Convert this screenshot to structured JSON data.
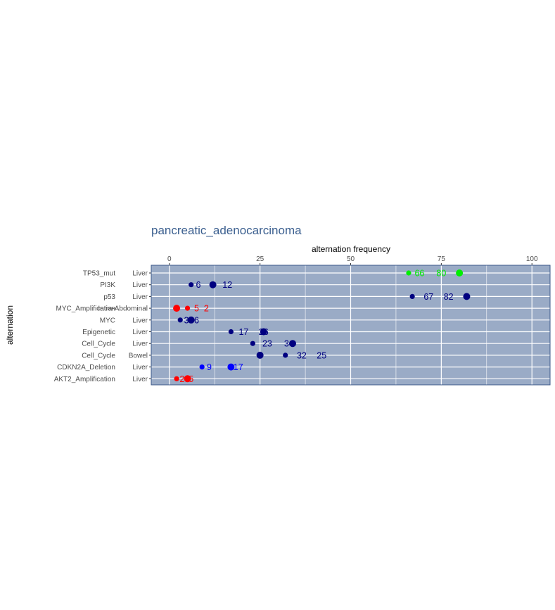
{
  "chart_data": {
    "type": "scatter",
    "title": "pancreatic_adenocarcinoma",
    "xlabel": "alternation frequency",
    "ylabel": "alternation",
    "xlim": [
      -5,
      105
    ],
    "x_axis_position": "top",
    "x_ticks": [
      "0",
      "25",
      "50",
      "75",
      "100"
    ],
    "x_tick_values": [
      0,
      25,
      50,
      75,
      100
    ],
    "grid": true,
    "legend": "none",
    "colors": {
      "panel_background": "#9aabc6",
      "panel_border": "#3c5a8a",
      "grid": "#ffffff",
      "title": "#3b5f8f",
      "green": "#00ee00",
      "navy": "#000080",
      "red": "#ff0000",
      "blue": "#0000ff"
    },
    "rows": [
      {
        "alternation": "TP53_mut",
        "site": "Liver",
        "color": "green",
        "points": [
          {
            "x": 66,
            "size": "small"
          },
          {
            "x": 80,
            "size": "large"
          }
        ],
        "labels": [
          {
            "text": "66",
            "x": 69
          },
          {
            "text": "80",
            "x": 75
          }
        ]
      },
      {
        "alternation": "PI3K",
        "site": "Liver",
        "color": "navy",
        "points": [
          {
            "x": 6,
            "size": "small"
          },
          {
            "x": 12,
            "size": "large"
          }
        ],
        "labels": [
          {
            "text": "6",
            "x": 8
          },
          {
            "text": "12",
            "x": 16
          }
        ]
      },
      {
        "alternation": "p53",
        "site": "Liver",
        "color": "navy",
        "points": [
          {
            "x": 67,
            "size": "small"
          },
          {
            "x": 82,
            "size": "large"
          }
        ],
        "labels": [
          {
            "text": "67",
            "x": 71.5
          },
          {
            "text": "82",
            "x": 77
          }
        ]
      },
      {
        "alternation": "MYC_Amplification",
        "site": "Intra-Abdominal",
        "color": "red",
        "points": [
          {
            "x": 2,
            "size": "large"
          },
          {
            "x": 5,
            "size": "small"
          }
        ],
        "labels": [
          {
            "text": "5",
            "x": 7.5
          },
          {
            "text": "2",
            "x": 10.2
          }
        ]
      },
      {
        "alternation": "MYC",
        "site": "Liver",
        "color": "navy",
        "points": [
          {
            "x": 3,
            "size": "small"
          },
          {
            "x": 6,
            "size": "large"
          }
        ],
        "labels": [
          {
            "text": "3",
            "x": 4.7
          },
          {
            "text": "6",
            "x": 7.5
          }
        ]
      },
      {
        "alternation": "Epigenetic",
        "site": "Liver",
        "color": "navy",
        "points": [
          {
            "x": 17,
            "size": "small"
          },
          {
            "x": 26,
            "size": "large"
          }
        ],
        "labels": [
          {
            "text": "17",
            "x": 20.5
          },
          {
            "text": "26",
            "x": 26
          }
        ]
      },
      {
        "alternation": "Cell_Cycle",
        "site": "Liver",
        "color": "navy",
        "points": [
          {
            "x": 23,
            "size": "small"
          },
          {
            "x": 34,
            "size": "large"
          }
        ],
        "labels": [
          {
            "text": "23",
            "x": 27
          },
          {
            "text": "34",
            "x": 33
          }
        ]
      },
      {
        "alternation": "Cell_Cycle",
        "site": "Bowel",
        "color": "navy",
        "points": [
          {
            "x": 25,
            "size": "large"
          },
          {
            "x": 32,
            "size": "small"
          }
        ],
        "labels": [
          {
            "text": "32",
            "x": 36.5
          },
          {
            "text": "25",
            "x": 42
          }
        ]
      },
      {
        "alternation": "CDKN2A_Deletion",
        "site": "Liver",
        "color": "blue",
        "points": [
          {
            "x": 9,
            "size": "small"
          },
          {
            "x": 17,
            "size": "large"
          }
        ],
        "labels": [
          {
            "text": "9",
            "x": 11
          },
          {
            "text": "17",
            "x": 19
          }
        ]
      },
      {
        "alternation": "AKT2_Amplification",
        "site": "Liver",
        "color": "red",
        "points": [
          {
            "x": 2,
            "size": "small"
          },
          {
            "x": 5,
            "size": "large"
          }
        ],
        "labels": [
          {
            "text": "2",
            "x": 3.5
          },
          {
            "text": "5",
            "x": 6
          }
        ]
      }
    ]
  }
}
